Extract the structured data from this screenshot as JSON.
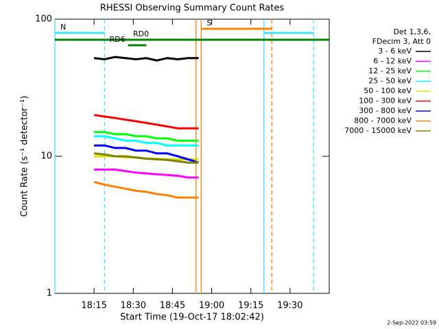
{
  "chart_data": {
    "type": "line",
    "title": "RHESSI Observing Summary Count Rates",
    "x_label": "Start Time (19-Oct-17 18:02:42)",
    "y_label": "Count Rate (s⁻¹ detector⁻¹)",
    "legend_header": [
      "Det 1,3,6,",
      "FDecim 3, Att 0"
    ],
    "footer": "2-Sep-2022 03:59",
    "log_y": true,
    "xlim": [
      "18:00",
      "19:45"
    ],
    "xticks": [
      "18:15",
      "18:30",
      "18:45",
      "19:00",
      "19:15",
      "19:30"
    ],
    "ylim": [
      1,
      100
    ],
    "yticks": [
      1,
      10,
      100
    ],
    "x": [
      "18:15",
      "18:19",
      "18:23",
      "18:27",
      "18:31",
      "18:35",
      "18:39",
      "18:43",
      "18:47",
      "18:51",
      "18:55"
    ],
    "series": [
      {
        "name": "3 - 6 keV",
        "color": "#000000",
        "values": [
          52,
          51,
          53,
          52,
          51,
          52,
          50,
          52,
          51,
          52,
          52
        ]
      },
      {
        "name": "6 - 12 keV",
        "color": "#ff00ff",
        "values": [
          8,
          8,
          8,
          7.8,
          7.6,
          7.5,
          7.4,
          7.3,
          7.2,
          7,
          7
        ]
      },
      {
        "name": "12 - 25 keV",
        "color": "#00ff00",
        "values": [
          15,
          15,
          14.5,
          14.5,
          14,
          14,
          13.5,
          13.5,
          13,
          13,
          13
        ]
      },
      {
        "name": "25 - 50 keV",
        "color": "#00ffff",
        "values": [
          14,
          14,
          13.5,
          13,
          13,
          12.5,
          12.5,
          12,
          12,
          12,
          12
        ]
      },
      {
        "name": "50 - 100 keV",
        "color": "#e0e000",
        "values": [
          10,
          10,
          10,
          9.8,
          9.8,
          9.6,
          9.6,
          9.5,
          9.5,
          9.5,
          9.5
        ]
      },
      {
        "name": "100 - 300 keV",
        "color": "#ff0000",
        "values": [
          20,
          19.5,
          19,
          18.5,
          18,
          17.5,
          17,
          16.5,
          16,
          16,
          16
        ]
      },
      {
        "name": "300 - 800 keV",
        "color": "#0000ff",
        "values": [
          12,
          12,
          11.5,
          11.5,
          11,
          11,
          10.5,
          10.5,
          10,
          9.5,
          9
        ]
      },
      {
        "name": "800 - 7000 keV",
        "color": "#ff8000",
        "values": [
          6.5,
          6.2,
          6,
          5.8,
          5.6,
          5.5,
          5.3,
          5.2,
          5,
          5,
          5
        ]
      },
      {
        "name": "7000 - 15000 keV",
        "color": "#808000",
        "values": [
          10.5,
          10.3,
          10,
          10,
          9.8,
          9.6,
          9.5,
          9.4,
          9.2,
          9,
          9
        ]
      }
    ],
    "markers": [
      {
        "x": "18:00",
        "color": "#40e0ff",
        "dashed": false
      },
      {
        "x": "18:19",
        "color": "#40e0ff",
        "dashed": true
      },
      {
        "x": "18:54",
        "color": "#ff8000",
        "dashed": false
      },
      {
        "x": "18:56",
        "color": "#ff8000",
        "dashed": false
      },
      {
        "x": "19:20",
        "color": "#40e0ff",
        "dashed": false
      },
      {
        "x": "19:23",
        "color": "#ff8000",
        "dashed": true
      },
      {
        "x": "19:39",
        "color": "#40e0ff",
        "dashed": true
      }
    ],
    "intervals": [
      {
        "start": "18:00",
        "end": "18:19",
        "color": "#40e0ff",
        "row": 1,
        "label": "N"
      },
      {
        "start": "19:20",
        "end": "19:39",
        "color": "#40e0ff",
        "row": 1
      },
      {
        "start": "18:56",
        "end": "19:23",
        "color": "#ff8000",
        "row": 0,
        "label": "S"
      },
      {
        "start": "18:00",
        "end": "19:45",
        "color": "#008000",
        "row": 2,
        "label": "RD0"
      },
      {
        "start": "18:28",
        "end": "18:35",
        "color": "#008000",
        "row": 3,
        "label": "RD6"
      }
    ]
  }
}
